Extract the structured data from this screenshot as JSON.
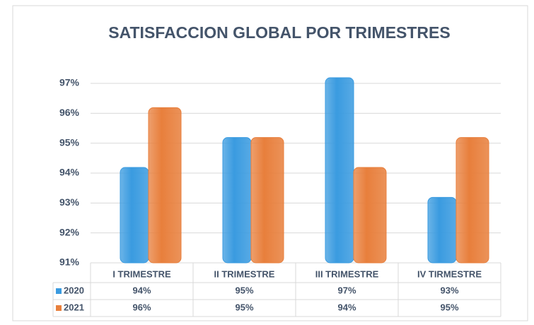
{
  "chart_data": {
    "type": "bar",
    "title": "SATISFACCION GLOBAL POR TRIMESTRES",
    "categories": [
      "I TRIMESTRE",
      "II TRIMESTRE",
      "III TRIMESTRE",
      "IV TIRMESTRE"
    ],
    "series": [
      {
        "name": "2020",
        "color": "#3a9be0",
        "values": [
          94,
          95,
          97,
          93
        ],
        "value_labels": [
          "94%",
          "95%",
          "97%",
          "93%"
        ]
      },
      {
        "name": "2021",
        "color": "#e87f3c",
        "values": [
          96,
          95,
          94,
          95
        ],
        "value_labels": [
          "96%",
          "95%",
          "94%",
          "95%"
        ]
      }
    ],
    "ylim": [
      91,
      97
    ],
    "yticks": [
      {
        "value": 91,
        "label": "91%"
      },
      {
        "value": 92,
        "label": "92%"
      },
      {
        "value": 93,
        "label": "93%"
      },
      {
        "value": 94,
        "label": "94%"
      },
      {
        "value": 95,
        "label": "95%"
      },
      {
        "value": 96,
        "label": "96%"
      },
      {
        "value": 97,
        "label": "97%"
      }
    ],
    "grid": true
  }
}
